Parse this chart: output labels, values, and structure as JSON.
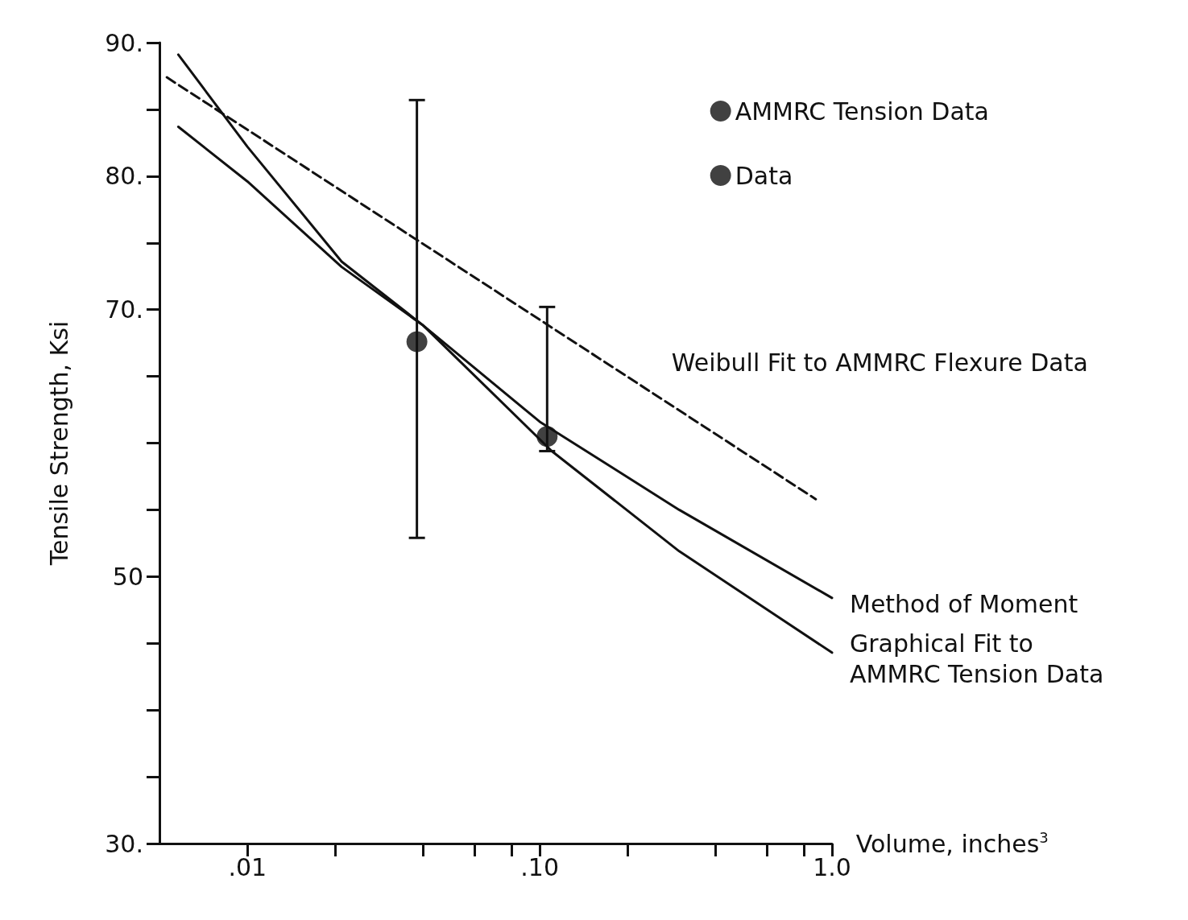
{
  "chart_data": {
    "type": "line",
    "xlabel": "Volume, inches$^{3}$",
    "ylabel": "Tensile Strength, Ksi",
    "log": "x",
    "grid": false,
    "legend": "top right",
    "xlim": [
      0.005,
      1
    ],
    "xticks": [
      {
        "value": 0.01,
        "label": ".01"
      },
      {
        "value": 0.02,
        "label": null
      },
      {
        "value": 0.04,
        "label": null
      },
      {
        "value": 0.06,
        "label": null
      },
      {
        "value": 0.08,
        "label": null
      },
      {
        "value": 0.1,
        "label": ".10"
      },
      {
        "value": 0.2,
        "label": null
      },
      {
        "value": 0.4,
        "label": null
      },
      {
        "value": 0.6,
        "label": null
      },
      {
        "value": 0.8,
        "label": null
      },
      {
        "value": 1,
        "label": "1.0"
      }
    ],
    "ylim": [
      30,
      90
    ],
    "yticks": [
      {
        "value": 30,
        "label": "30."
      },
      {
        "value": 35,
        "label": null
      },
      {
        "value": 40,
        "label": null
      },
      {
        "value": 45,
        "label": null
      },
      {
        "value": 50,
        "label": "50"
      },
      {
        "value": 55,
        "label": null
      },
      {
        "value": 60,
        "label": null
      },
      {
        "value": 65,
        "label": null
      },
      {
        "value": 70,
        "label": "70."
      },
      {
        "value": 75,
        "label": null
      },
      {
        "value": 80,
        "label": "80."
      },
      {
        "value": 85,
        "label": null
      },
      {
        "value": 90,
        "label": "90."
      }
    ],
    "series": [
      {
        "name": "Weibull Fit to AMMRC Flexure Data",
        "type": "line",
        "line_style": "dashed",
        "marker": "none",
        "color": "#111111",
        "x": [
          0.0053,
          0.88
        ],
        "values": [
          87.4,
          55.8
        ]
      },
      {
        "name": "Method of Moment",
        "type": "line",
        "line_style": "solid",
        "marker": "none",
        "color": "#111111",
        "x": [
          0.0058,
          0.01,
          0.021,
          0.04,
          0.1,
          0.3,
          1.0
        ],
        "values": [
          83.7,
          79.6,
          73.2,
          68.8,
          61.6,
          55.0,
          48.4
        ]
      },
      {
        "name": "Graphical Fit to\nAMMRC Tension Data",
        "type": "line",
        "line_style": "solid",
        "marker": "none",
        "color": "#111111",
        "x": [
          0.0058,
          0.01,
          0.021,
          0.04,
          0.11,
          0.3,
          1.0
        ],
        "values": [
          89.1,
          82.2,
          73.6,
          68.8,
          59.4,
          51.9,
          44.3
        ]
      },
      {
        "name": "AMMRC Tension Data",
        "type": "scatter",
        "marker": "circle",
        "color": "#111111",
        "x": [
          0.038
        ],
        "values": [
          67.6
        ],
        "errors": [
          [
            52.9,
            85.7
          ]
        ]
      },
      {
        "name": "Data",
        "type": "scatter",
        "marker": "circle",
        "color": "#111111",
        "x": [
          0.106
        ],
        "values": [
          60.5
        ],
        "errors": [
          [
            59.4,
            70.2
          ]
        ]
      }
    ]
  }
}
